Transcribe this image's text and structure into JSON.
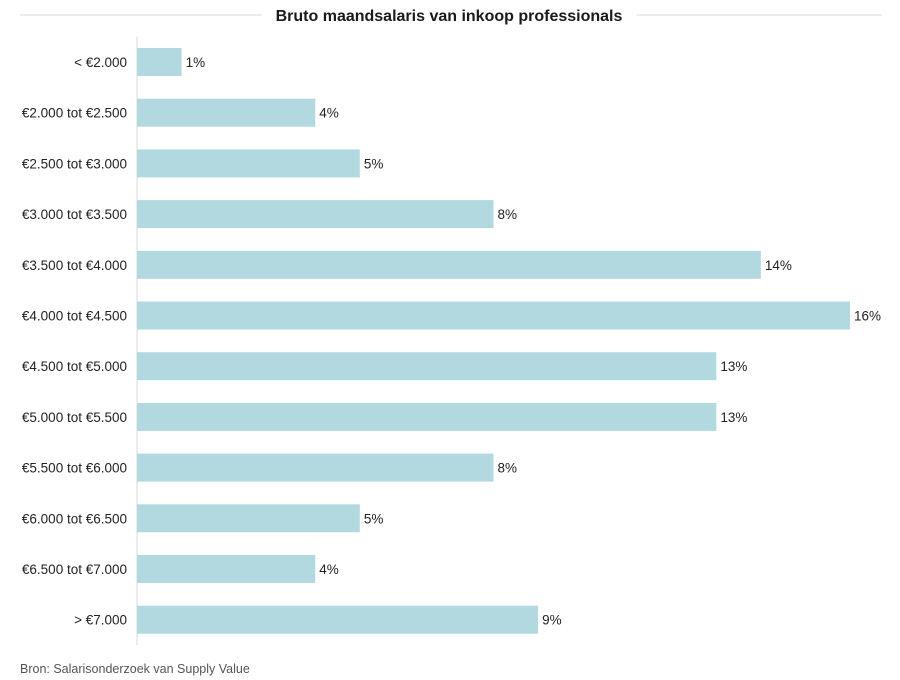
{
  "chart_data": {
    "type": "bar",
    "orientation": "horizontal",
    "title": "Bruto maandsalaris van inkoop professionals",
    "categories": [
      "< €2.000",
      "€2.000 tot €2.500",
      "€2.500 tot €3.000",
      "€3.000 tot €3.500",
      "€3.500 tot €4.000",
      "€4.000 tot €4.500",
      "€4.500 tot €5.000",
      "€5.000 tot €5.500",
      "€5.500 tot €6.000",
      "€6.000 tot €6.500",
      "€6.500 tot €7.000",
      "> €7.000"
    ],
    "values": [
      1,
      4,
      5,
      8,
      14,
      16,
      13,
      13,
      8,
      5,
      4,
      9
    ],
    "value_labels": [
      "1%",
      "4%",
      "5%",
      "8%",
      "14%",
      "16%",
      "13%",
      "13%",
      "8%",
      "5%",
      "4%",
      "9%"
    ],
    "xlim": [
      0,
      16
    ],
    "unit": "%",
    "bar_color": "#b2d9e0",
    "axis_color": "#d9d9d9",
    "grid": false,
    "legend": "none",
    "source": "Bron: Salarisonderzoek van Supply Value"
  }
}
